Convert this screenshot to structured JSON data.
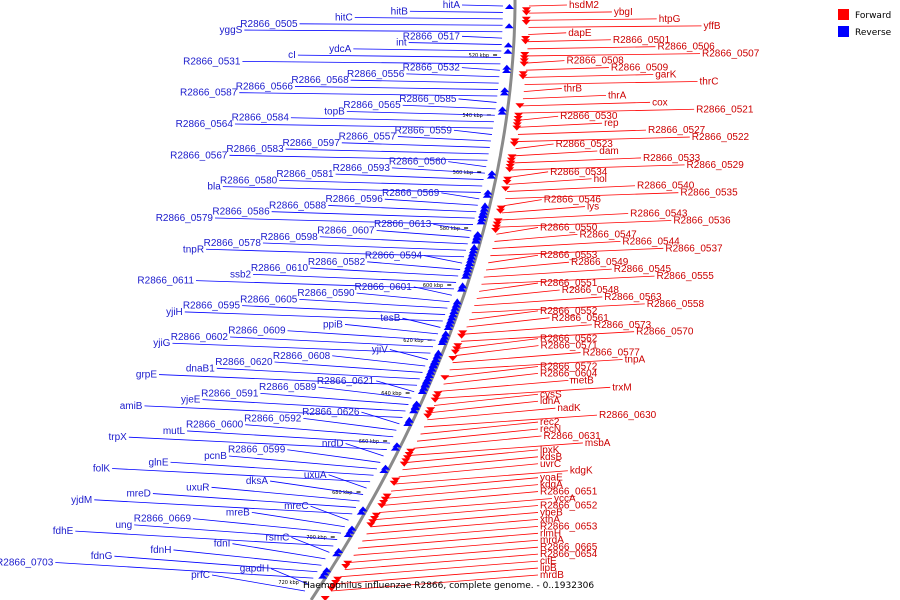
{
  "title": "Haemophilus influenzae R2866, complete genome. - 0..1932306",
  "legend": [
    {
      "label": "Forward",
      "color": "#ff0000"
    },
    {
      "label": "Reverse",
      "color": "#0000ff"
    }
  ],
  "ticks": [
    "520 kbp",
    "540 kbp",
    "560 kbp",
    "580 kbp",
    "600 kbp",
    "620 kbp",
    "640 kbp",
    "660 kbp",
    "680 kbp",
    "700 kbp",
    "720 kbp"
  ],
  "forward_genes": [
    "hsdM2",
    "ybgI",
    "htpG",
    "yffB",
    "dapE",
    "R2866_0501",
    "R2866_0506",
    "R2866_0507",
    "R2866_0508",
    "R2866_0509",
    "garK",
    "thrC",
    "thrB",
    "thrA",
    "cox",
    "R2866_0521",
    "R2866_0530",
    "rep",
    "R2866_0527",
    "R2866_0522",
    "R2866_0523",
    "dam",
    "R2866_0533",
    "R2866_0529",
    "R2866_0534",
    "hol",
    "R2866_0540",
    "R2866_0535",
    "R2866_0546",
    "lys",
    "R2866_0543",
    "R2866_0536",
    "R2866_0550",
    "R2866_0547",
    "R2866_0544",
    "R2866_0537",
    "R2866_0553",
    "R2866_0549",
    "R2866_0545",
    "R2866_0555",
    "R2866_0551",
    "R2866_0548",
    "R2866_0563",
    "R2866_0558",
    "R2866_0552",
    "R2866_0561",
    "R2866_0573",
    "R2866_0570",
    "R2866_0562",
    "R2866_0571",
    "R2866_0577",
    "tnpA",
    "R2866_0572",
    "R2866_0604",
    "metB",
    "trxM",
    "cysS",
    "ldhA",
    "nadK",
    "R2866_0630",
    "rec2",
    "recN",
    "R2866_0631",
    "msbA",
    "lpxK",
    "kdsB",
    "uvrC",
    "kdgK",
    "yoaE",
    "kdgA",
    "R2866_0651",
    "yccA",
    "R2866_0652",
    "ybeB",
    "xthA",
    "R2866_0653",
    "rlmH",
    "mrdA",
    "R2866_0665",
    "R2866_0654",
    "citE",
    "lipB",
    "mrdB"
  ],
  "reverse_genes": [
    "hitA",
    "hitB",
    "hitC",
    "R2866_0505",
    "yggS",
    "R2866_0517",
    "int",
    "ydcA",
    "cI",
    "R2866_0531",
    "R2866_0532",
    "R2866_0556",
    "R2866_0568",
    "R2866_0566",
    "R2866_0587",
    "R2866_0585",
    "R2866_0565",
    "topB",
    "R2866_0584",
    "R2866_0564",
    "R2866_0559",
    "R2866_0557",
    "R2866_0597",
    "R2866_0583",
    "R2866_0567",
    "R2866_0560",
    "R2866_0593",
    "R2866_0581",
    "R2866_0580",
    "bla",
    "R2866_0569",
    "R2866_0596",
    "R2866_0588",
    "R2866_0586",
    "R2866_0579",
    "R2866_0613",
    "R2866_0607",
    "R2866_0598",
    "R2866_0578",
    "tnpR",
    "R2866_0594",
    "R2866_0582",
    "R2866_0610",
    "ssb2",
    "R2866_0611",
    "R2866_0601",
    "R2866_0590",
    "R2866_0605",
    "R2866_0595",
    "yjiH",
    "tesB",
    "ppiB",
    "R2866_0609",
    "R2866_0602",
    "yjiG",
    "yjiV",
    "R2866_0608",
    "R2866_0620",
    "dnaB1",
    "grpE",
    "R2866_0621",
    "R2866_0589",
    "R2866_0591",
    "yjeE",
    "amiB",
    "R2866_0626",
    "R2866_0592",
    "R2866_0600",
    "mutL",
    "trpX",
    "nrdD",
    "R2866_0599",
    "pcnB",
    "glnE",
    "folK",
    "uxuA",
    "dksA",
    "uxuR",
    "mreD",
    "yjdM",
    "mreC",
    "mreB",
    "R2866_0669",
    "ung",
    "fdhE",
    "rsmC",
    "fdnI",
    "fdnH",
    "fdnG",
    "R2866_0703",
    "gapdH",
    "prfC"
  ]
}
